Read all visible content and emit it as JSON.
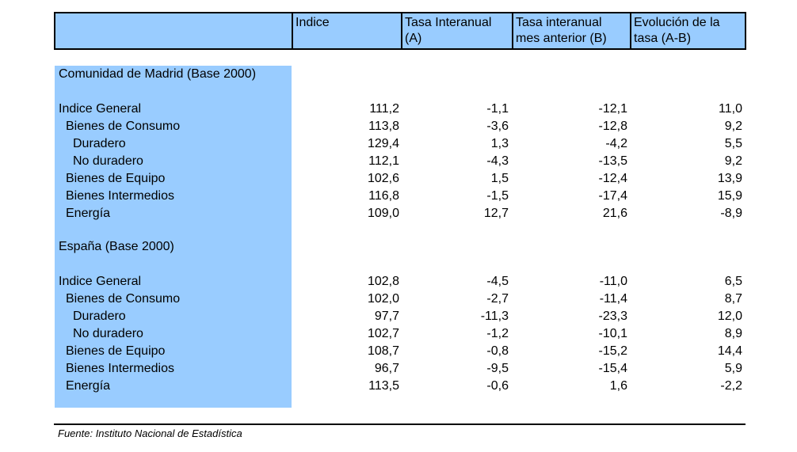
{
  "header": {
    "col_index": "Indice",
    "col_a_line1": "Tasa Interanual",
    "col_a_line2": "(A)",
    "col_b_line1": "Tasa interanual",
    "col_b_line2": "mes anterior (B)",
    "col_c_line1": "Evolución de la",
    "col_c_line2": "tasa (A-B)"
  },
  "sections": [
    {
      "title": "Comunidad de Madrid (Base 2000)",
      "rows": [
        {
          "label": "Indice General",
          "level": 0,
          "indice": "111,2",
          "a": "-1,1",
          "b": "-12,1",
          "c": "11,0"
        },
        {
          "label": "Bienes de Consumo",
          "level": 1,
          "indice": "113,8",
          "a": "-3,6",
          "b": "-12,8",
          "c": "9,2"
        },
        {
          "label": "Duradero",
          "level": 2,
          "indice": "129,4",
          "a": "1,3",
          "b": "-4,2",
          "c": "5,5"
        },
        {
          "label": "No duradero",
          "level": 2,
          "indice": "112,1",
          "a": "-4,3",
          "b": "-13,5",
          "c": "9,2"
        },
        {
          "label": "Bienes de Equipo",
          "level": 1,
          "indice": "102,6",
          "a": "1,5",
          "b": "-12,4",
          "c": "13,9"
        },
        {
          "label": "Bienes Intermedios",
          "level": 1,
          "indice": "116,8",
          "a": "-1,5",
          "b": "-17,4",
          "c": "15,9"
        },
        {
          "label": "Energía",
          "level": 1,
          "indice": "109,0",
          "a": "12,7",
          "b": "21,6",
          "c": "-8,9"
        }
      ]
    },
    {
      "title": "España (Base 2000)",
      "rows": [
        {
          "label": "Indice General",
          "level": 0,
          "indice": "102,8",
          "a": "-4,5",
          "b": "-11,0",
          "c": "6,5"
        },
        {
          "label": "Bienes de Consumo",
          "level": 1,
          "indice": "102,0",
          "a": "-2,7",
          "b": "-11,4",
          "c": "8,7"
        },
        {
          "label": "Duradero",
          "level": 2,
          "indice": "97,7",
          "a": "-11,3",
          "b": "-23,3",
          "c": "12,0"
        },
        {
          "label": "No duradero",
          "level": 2,
          "indice": "102,7",
          "a": "-1,2",
          "b": "-10,1",
          "c": "8,9"
        },
        {
          "label": "Bienes de Equipo",
          "level": 1,
          "indice": "108,7",
          "a": "-0,8",
          "b": "-15,2",
          "c": "14,4"
        },
        {
          "label": "Bienes Intermedios",
          "level": 1,
          "indice": "96,7",
          "a": "-9,5",
          "b": "-15,4",
          "c": "5,9"
        },
        {
          "label": "Energía",
          "level": 1,
          "indice": "113,5",
          "a": "-0,6",
          "b": "1,6",
          "c": "-2,2"
        }
      ]
    }
  ],
  "source": "Fuente: Instituto Nacional de Estadística",
  "colors": {
    "header_bg": "#99ccff",
    "band_bg": "#99ccff"
  }
}
